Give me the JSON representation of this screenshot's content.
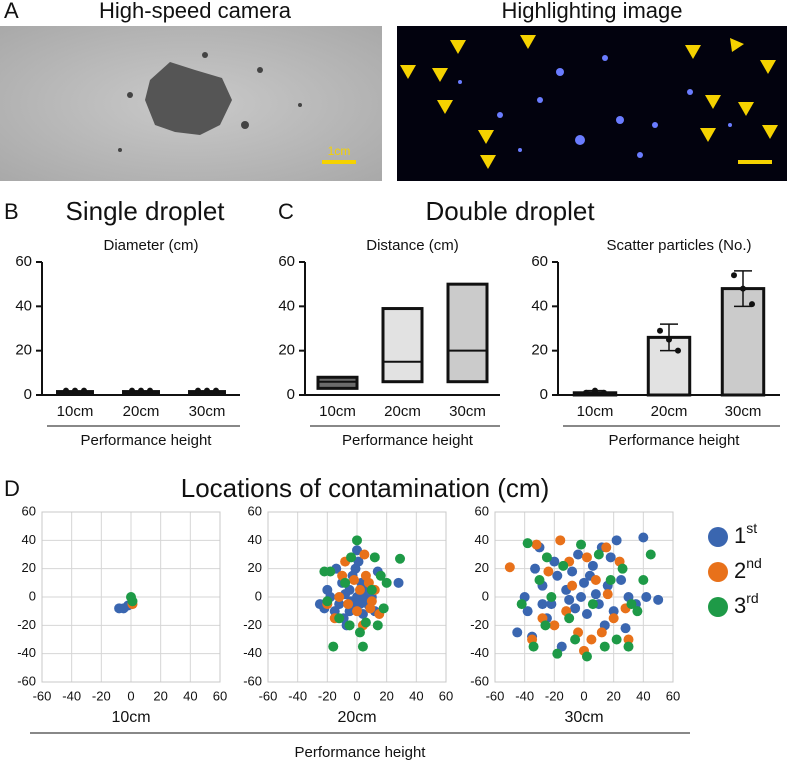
{
  "panels": {
    "A": {
      "label": "A",
      "left_title": "High-speed camera",
      "right_title": "Highlighting image",
      "scale_label": "1cm"
    },
    "B": {
      "label": "B",
      "title": "Single droplet"
    },
    "C": {
      "label": "C",
      "title": "Double droplet"
    },
    "D": {
      "label": "D",
      "title": "Locations of contamination (cm)",
      "x_label": "Performance height"
    }
  },
  "chart_data": [
    {
      "type": "bar",
      "title": "Diameter (cm)",
      "x_label": "Performance height",
      "categories": [
        "10cm",
        "20cm",
        "30cm"
      ],
      "values": [
        2,
        2,
        2
      ],
      "points": [
        [
          2,
          2,
          2
        ],
        [
          2,
          2,
          2
        ],
        [
          2,
          2,
          2
        ]
      ],
      "colors": [
        "#111111",
        "#111111",
        "#111111"
      ],
      "ylim": [
        0,
        60
      ],
      "yticks": [
        0,
        20,
        40,
        60
      ]
    },
    {
      "type": "range",
      "title": "Distance (cm)",
      "x_label": "Performance height",
      "categories": [
        "10cm",
        "20cm",
        "30cm"
      ],
      "min": [
        3,
        6,
        6
      ],
      "median": [
        6,
        15,
        20
      ],
      "max": [
        8,
        39,
        50
      ],
      "colors": [
        "#6b6b6b",
        "#e2e2e2",
        "#cbcbcb"
      ],
      "ylim": [
        0,
        60
      ],
      "yticks": [
        0,
        20,
        40,
        60
      ]
    },
    {
      "type": "bar",
      "title": "Scatter particles (No.)",
      "x_label": "Performance height",
      "categories": [
        "10cm",
        "20cm",
        "30cm"
      ],
      "values": [
        1,
        26,
        48
      ],
      "errors": [
        1,
        6,
        8
      ],
      "points": [
        [
          1,
          2,
          1
        ],
        [
          29,
          25,
          20
        ],
        [
          54,
          48,
          41
        ]
      ],
      "colors": [
        "#f4f4f4",
        "#e2e2e2",
        "#cbcbcb"
      ],
      "ylim": [
        0,
        60
      ],
      "yticks": [
        0,
        20,
        40,
        60
      ]
    },
    {
      "type": "scatter",
      "x_label": "10cm",
      "grid": true,
      "xlim": [
        -60,
        60
      ],
      "ylim": [
        -60,
        60
      ],
      "xticks": [
        -60,
        -40,
        -20,
        0,
        20,
        40,
        60
      ],
      "yticks": [
        -60,
        -40,
        -20,
        0,
        20,
        40,
        60
      ],
      "series": [
        {
          "color": "#3a66b0",
          "x": [
            -8,
            -5,
            -2
          ],
          "y": [
            -8,
            -8,
            -6
          ]
        },
        {
          "color": "#e8711a",
          "x": [
            1
          ],
          "y": [
            -5
          ]
        },
        {
          "color": "#1e9a47",
          "x": [
            0,
            1
          ],
          "y": [
            0,
            -3
          ]
        }
      ]
    },
    {
      "type": "scatter",
      "x_label": "20cm",
      "grid": true,
      "xlim": [
        -60,
        60
      ],
      "ylim": [
        -60,
        60
      ],
      "xticks": [
        -60,
        -40,
        -20,
        0,
        20,
        40,
        60
      ],
      "yticks": [
        -60,
        -40,
        -20,
        0,
        20,
        40,
        60
      ],
      "series": [
        {
          "color": "#3a66b0",
          "x": [
            -25,
            -22,
            -20,
            -18,
            -15,
            -14,
            -12,
            -10,
            -9,
            -8,
            -7,
            -5,
            -4,
            -3,
            -2,
            0,
            0,
            1,
            2,
            3,
            4,
            5,
            6,
            7,
            8,
            10,
            12,
            14,
            -5,
            -1,
            3,
            28
          ],
          "y": [
            -5,
            -8,
            5,
            0,
            -10,
            20,
            -5,
            10,
            -15,
            2,
            -20,
            5,
            -3,
            15,
            -8,
            33,
            0,
            25,
            -5,
            10,
            -12,
            3,
            -2,
            8,
            -6,
            0,
            -10,
            18,
            -10,
            20,
            -1,
            10
          ]
        },
        {
          "color": "#e8711a",
          "x": [
            -20,
            -15,
            -10,
            -6,
            -2,
            0,
            2,
            4,
            6,
            8,
            10,
            12,
            15,
            -8,
            5,
            -12,
            9
          ],
          "y": [
            -5,
            -15,
            15,
            -5,
            12,
            -10,
            5,
            -20,
            15,
            10,
            -3,
            5,
            -12,
            25,
            30,
            0,
            -8
          ]
        },
        {
          "color": "#1e9a47",
          "x": [
            -22,
            -18,
            -20,
            -16,
            -12,
            -8,
            -4,
            0,
            2,
            4,
            6,
            10,
            14,
            16,
            18,
            20,
            29,
            -5,
            12
          ],
          "y": [
            18,
            18,
            -3,
            -35,
            -15,
            10,
            28,
            40,
            -25,
            -35,
            -18,
            5,
            -20,
            15,
            -8,
            10,
            27,
            -20,
            28
          ]
        }
      ]
    },
    {
      "type": "scatter",
      "x_label": "30cm",
      "grid": true,
      "legend": "right",
      "xlim": [
        -60,
        60
      ],
      "ylim": [
        -60,
        60
      ],
      "xticks": [
        -60,
        -40,
        -20,
        0,
        20,
        40,
        60
      ],
      "yticks": [
        -60,
        -40,
        -20,
        0,
        20,
        40,
        60
      ],
      "series": [
        {
          "name": "1st",
          "color": "#3a66b0",
          "x": [
            -45,
            -40,
            -38,
            -35,
            -33,
            -30,
            -28,
            -25,
            -22,
            -20,
            -18,
            -15,
            -12,
            -10,
            -8,
            -6,
            -4,
            -2,
            0,
            2,
            4,
            6,
            8,
            10,
            12,
            14,
            16,
            18,
            20,
            22,
            25,
            28,
            30,
            35,
            40,
            42,
            50,
            -28
          ],
          "y": [
            -25,
            0,
            -10,
            -28,
            20,
            35,
            8,
            -15,
            -5,
            25,
            15,
            -35,
            5,
            -2,
            18,
            -8,
            30,
            0,
            10,
            -12,
            15,
            22,
            2,
            -5,
            35,
            -20,
            8,
            28,
            -10,
            40,
            12,
            -22,
            0,
            -5,
            42,
            0,
            -2,
            -5
          ]
        },
        {
          "name": "2nd",
          "color": "#e8711a",
          "x": [
            -50,
            -35,
            -32,
            -28,
            -24,
            -20,
            -16,
            -12,
            -8,
            -4,
            0,
            2,
            5,
            8,
            12,
            16,
            20,
            24,
            28,
            30,
            15,
            -10
          ],
          "y": [
            21,
            -30,
            37,
            -15,
            18,
            -20,
            40,
            -10,
            8,
            -25,
            -38,
            28,
            -30,
            12,
            -25,
            2,
            -15,
            25,
            -8,
            -30,
            35,
            25
          ]
        },
        {
          "name": "3rd",
          "color": "#1e9a47",
          "x": [
            -42,
            -38,
            -34,
            -30,
            -26,
            -22,
            -18,
            -14,
            -10,
            -6,
            -2,
            2,
            6,
            10,
            14,
            18,
            22,
            26,
            30,
            32,
            36,
            40,
            45,
            -25
          ],
          "y": [
            -5,
            38,
            -35,
            12,
            -20,
            0,
            -40,
            22,
            -15,
            -30,
            37,
            -42,
            -5,
            30,
            -35,
            12,
            -30,
            20,
            -35,
            -5,
            -10,
            12,
            30,
            28
          ]
        }
      ]
    }
  ]
}
